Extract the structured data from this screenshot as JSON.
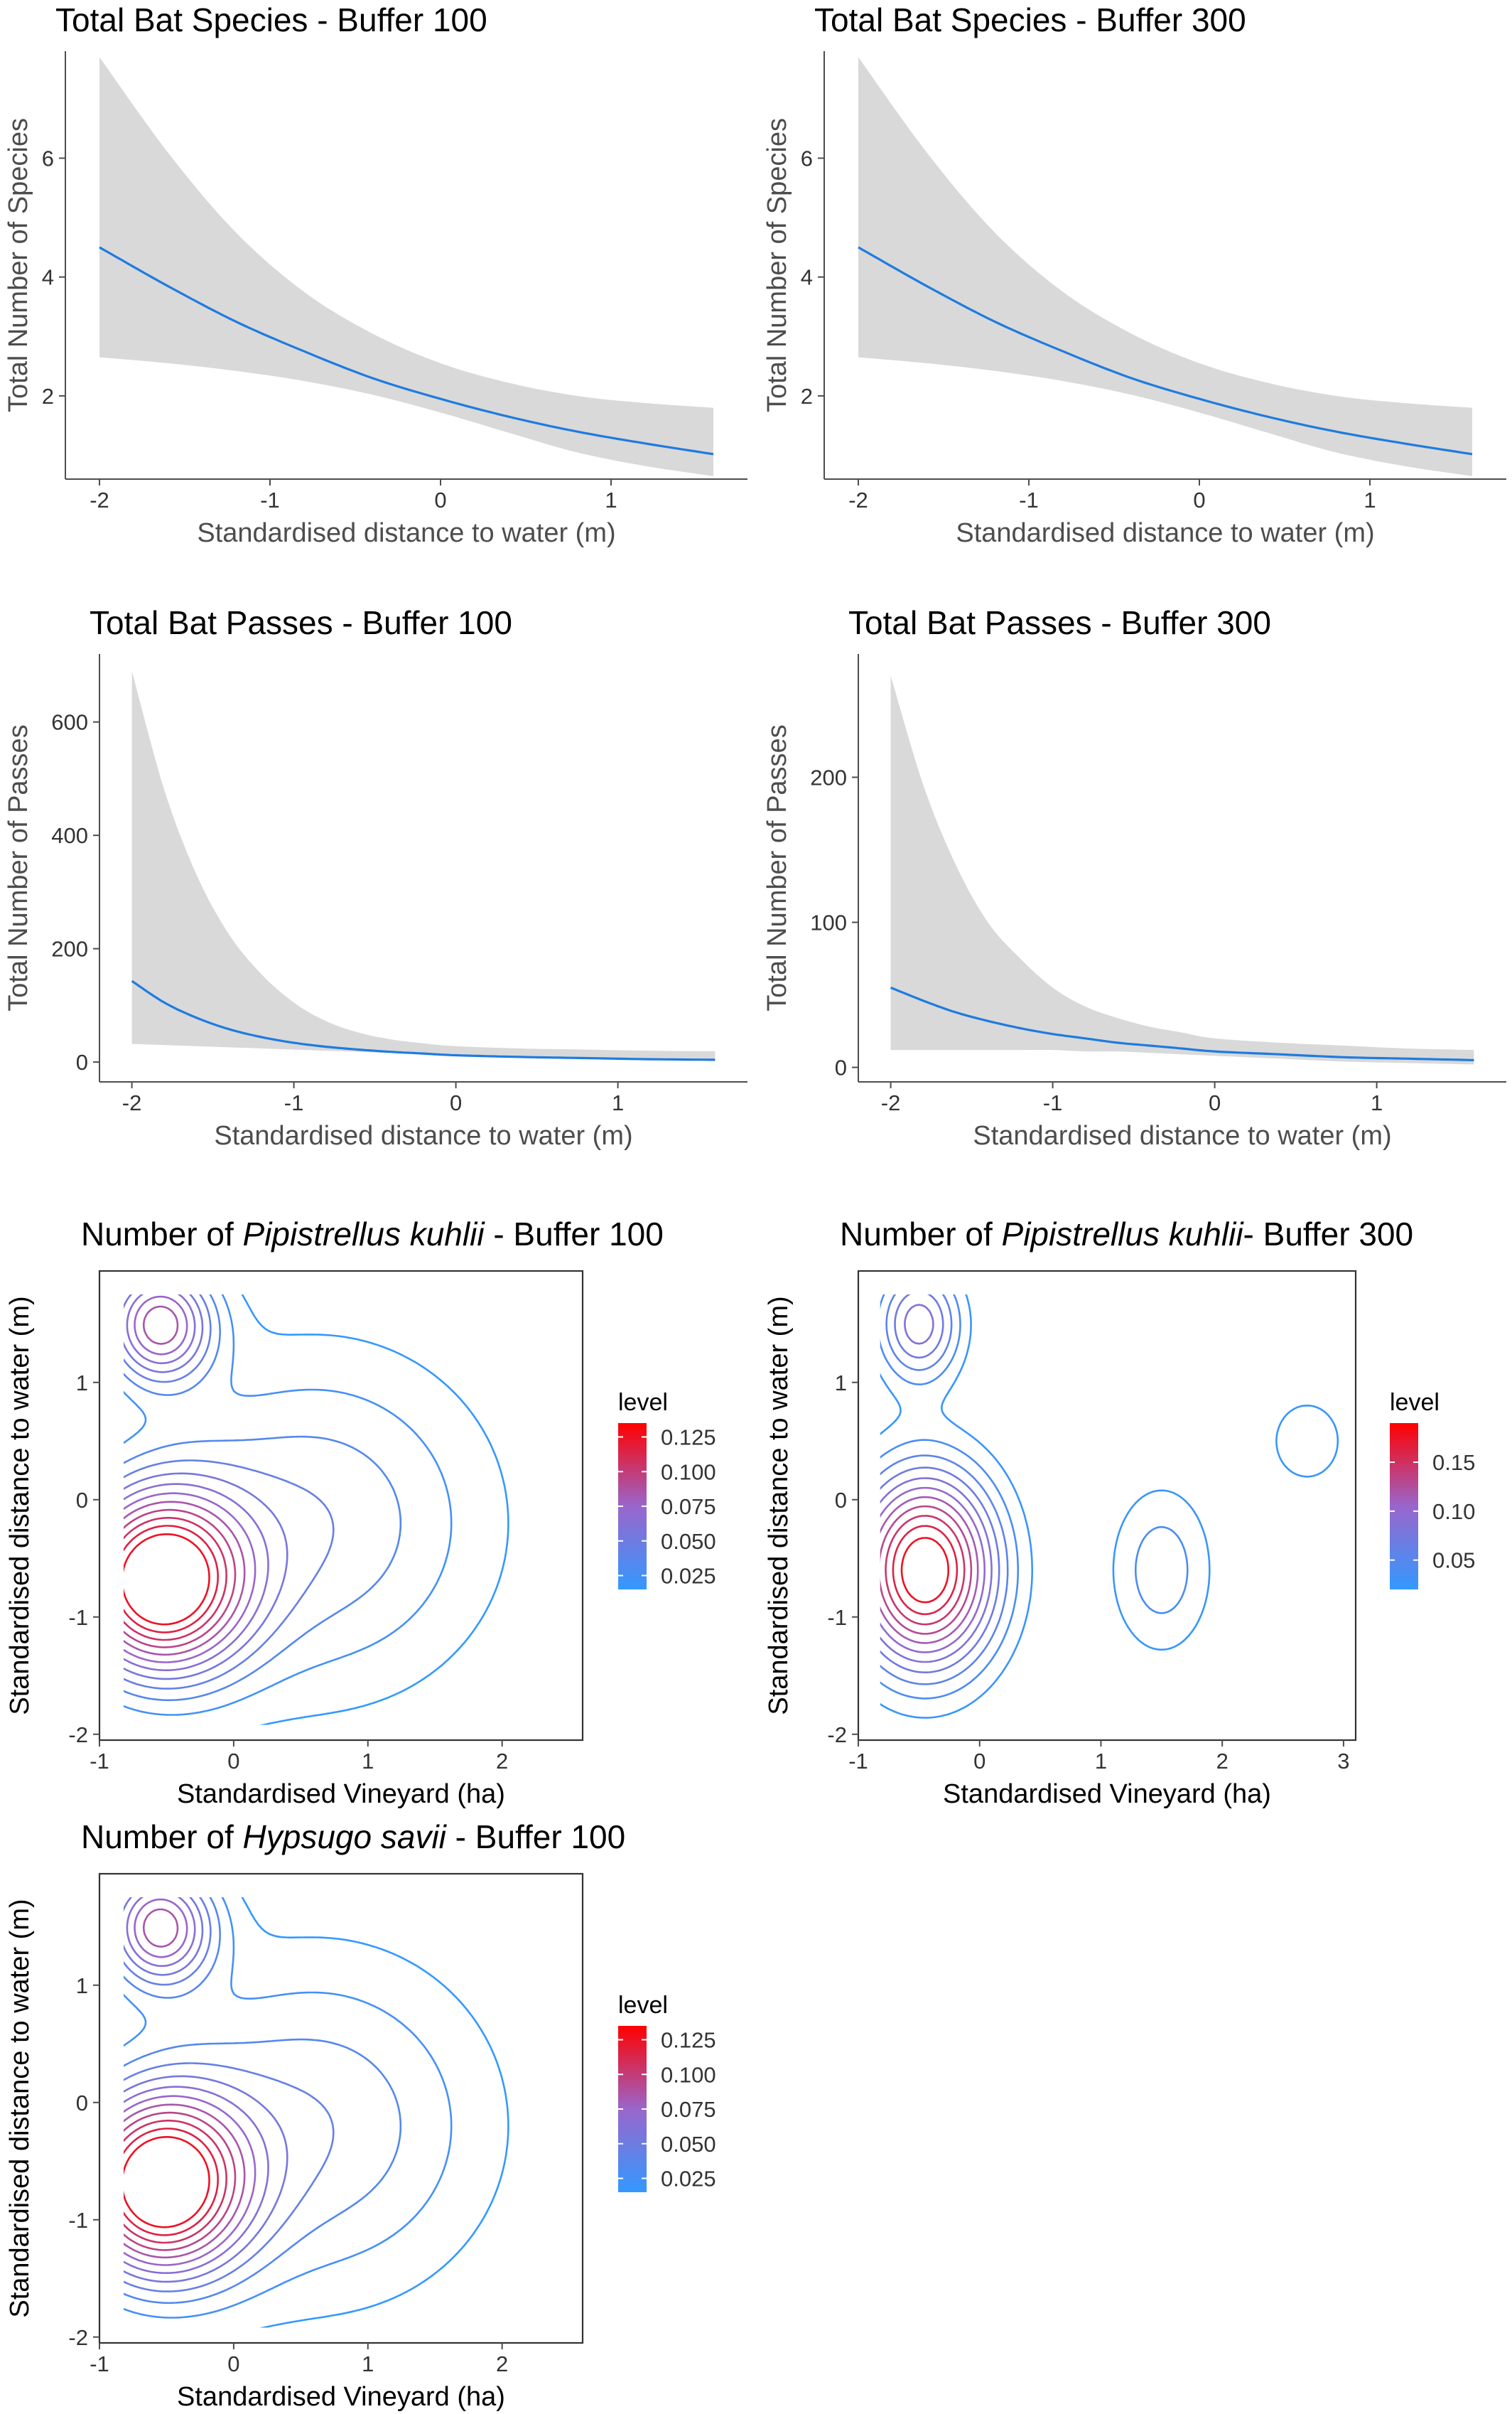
{
  "chart_data": [
    {
      "type": "line",
      "title": "Total Bat Species - Buffer 100",
      "xlabel": "Standardised distance to water (m)",
      "ylabel": "Total Number of Species",
      "xlim": [
        -2.2,
        1.8
      ],
      "ylim": [
        0.6,
        7.8
      ],
      "xticks": [
        -2,
        -1,
        0,
        1
      ],
      "xtick_labels": [
        "-2",
        "-1",
        "0",
        "1"
      ],
      "yticks": [
        2,
        4,
        6
      ],
      "ytick_labels": [
        "2",
        "4",
        "6"
      ],
      "series": [
        {
          "x": [
            -2.0,
            -1.6,
            -1.2,
            -0.8,
            -0.4,
            0.0,
            0.4,
            0.8,
            1.2,
            1.6
          ],
          "y": [
            4.5,
            3.85,
            3.25,
            2.75,
            2.3,
            1.95,
            1.65,
            1.4,
            1.2,
            1.02
          ],
          "lower": [
            2.65,
            2.55,
            2.42,
            2.25,
            2.02,
            1.72,
            1.38,
            1.05,
            0.82,
            0.65
          ],
          "upper": [
            7.7,
            6.1,
            4.75,
            3.75,
            3.05,
            2.55,
            2.22,
            2.0,
            1.88,
            1.8
          ],
          "color": "#1e7be0",
          "band_color": "#d9d9d9"
        }
      ]
    },
    {
      "type": "line",
      "title": "Total Bat Species - Buffer 300",
      "xlabel": "Standardised distance to water (m)",
      "ylabel": "Total Number of Species",
      "xlim": [
        -2.2,
        1.8
      ],
      "ylim": [
        0.6,
        7.8
      ],
      "xticks": [
        -2,
        -1,
        0,
        1
      ],
      "xtick_labels": [
        "-2",
        "-1",
        "0",
        "1"
      ],
      "yticks": [
        2,
        4,
        6
      ],
      "ytick_labels": [
        "2",
        "4",
        "6"
      ],
      "series": [
        {
          "x": [
            -2.0,
            -1.6,
            -1.2,
            -0.8,
            -0.4,
            0.0,
            0.4,
            0.8,
            1.2,
            1.6
          ],
          "y": [
            4.5,
            3.85,
            3.25,
            2.75,
            2.3,
            1.95,
            1.65,
            1.4,
            1.2,
            1.02
          ],
          "lower": [
            2.65,
            2.55,
            2.42,
            2.25,
            2.02,
            1.72,
            1.38,
            1.05,
            0.82,
            0.65
          ],
          "upper": [
            7.7,
            6.1,
            4.75,
            3.75,
            3.05,
            2.55,
            2.22,
            2.0,
            1.88,
            1.8
          ],
          "color": "#1e7be0",
          "band_color": "#d9d9d9"
        }
      ]
    },
    {
      "type": "line",
      "title": "Total Bat Passes - Buffer 100",
      "xlabel": "Standardised distance to water (m)",
      "ylabel": "Total Number of Passes",
      "xlim": [
        -2.2,
        1.8
      ],
      "ylim": [
        -35,
        720
      ],
      "xticks": [
        -2,
        -1,
        0,
        1
      ],
      "xtick_labels": [
        "-2",
        "-1",
        "0",
        "1"
      ],
      "yticks": [
        0,
        200,
        400,
        600
      ],
      "ytick_labels": [
        "0",
        "200",
        "400",
        "600"
      ],
      "series": [
        {
          "x": [
            -2.0,
            -1.8,
            -1.6,
            -1.4,
            -1.2,
            -1.0,
            -0.8,
            -0.6,
            -0.4,
            -0.2,
            0.0,
            0.4,
            0.8,
            1.2,
            1.6
          ],
          "y": [
            143,
            105,
            78,
            58,
            44,
            34,
            27,
            22,
            18,
            15,
            12,
            9,
            7,
            5,
            4
          ],
          "lower": [
            32,
            30,
            28,
            26,
            24,
            22,
            20,
            18,
            16,
            14,
            11,
            8,
            5,
            3,
            2
          ],
          "upper": [
            690,
            480,
            330,
            225,
            155,
            105,
            72,
            52,
            40,
            33,
            28,
            24,
            22,
            20,
            19
          ],
          "color": "#1e7be0",
          "band_color": "#d9d9d9"
        }
      ]
    },
    {
      "type": "line",
      "title": "Total Bat Passes - Buffer 300",
      "xlabel": "Standardised distance to water (m)",
      "ylabel": "Total Number of Passes",
      "xlim": [
        -2.2,
        1.8
      ],
      "ylim": [
        -10,
        285
      ],
      "xticks": [
        -2,
        -1,
        0,
        1
      ],
      "xtick_labels": [
        "-2",
        "-1",
        "0",
        "1"
      ],
      "yticks": [
        0,
        100,
        200
      ],
      "ytick_labels": [
        "0",
        "100",
        "200"
      ],
      "series": [
        {
          "x": [
            -2.0,
            -1.8,
            -1.6,
            -1.4,
            -1.2,
            -1.0,
            -0.8,
            -0.6,
            -0.4,
            -0.2,
            0.0,
            0.4,
            0.8,
            1.2,
            1.6
          ],
          "y": [
            55,
            46,
            38,
            32,
            27,
            23,
            20,
            17,
            15,
            13,
            11,
            9,
            7,
            6,
            5
          ],
          "lower": [
            12,
            12,
            12,
            12,
            12,
            12,
            11,
            11,
            10,
            9,
            8,
            6,
            4,
            3,
            2
          ],
          "upper": [
            270,
            195,
            140,
            100,
            75,
            55,
            42,
            34,
            28,
            24,
            20,
            17,
            15,
            13,
            12
          ],
          "color": "#1e7be0",
          "band_color": "#d9d9d9"
        }
      ]
    },
    {
      "type": "contour",
      "title_prefix": "Number of ",
      "title_species": "Pipistrellus kuhlii",
      "title_suffix": " - Buffer 100",
      "xlabel": "Standardised Vineyard (ha)",
      "ylabel": "Standardised distance to water (m)",
      "xlim": [
        -1.0,
        2.6
      ],
      "ylim": [
        -2.05,
        1.95
      ],
      "xticks": [
        -1,
        0,
        1,
        2
      ],
      "xtick_labels": [
        "-1",
        "0",
        "1",
        "2"
      ],
      "yticks": [
        -2,
        -1,
        0,
        1
      ],
      "ytick_labels": [
        "-2",
        "-1",
        "0",
        "1"
      ],
      "legend_title": "level",
      "legend_labels": [
        "0.125",
        "0.100",
        "0.075",
        "0.050",
        "0.025"
      ],
      "legend_values": [
        0.125,
        0.1,
        0.075,
        0.05,
        0.025
      ],
      "level_range": [
        0.015,
        0.135
      ],
      "color_low": "#3399ff",
      "color_mid": "#9966cc",
      "color_high": "#ff0000",
      "levels": [
        0.015,
        0.025,
        0.035,
        0.045,
        0.055,
        0.065,
        0.075,
        0.085,
        0.095,
        0.105,
        0.115,
        0.125
      ],
      "field": {
        "bumps": [
          {
            "x": -0.55,
            "y": -0.7,
            "amp": 0.135,
            "sx": 0.45,
            "sy": 0.55
          },
          {
            "x": -0.55,
            "y": 1.5,
            "amp": 0.085,
            "sx": 0.28,
            "sy": 0.35
          },
          {
            "x": 0.6,
            "y": -0.2,
            "amp": 0.04,
            "sx": 0.9,
            "sy": 1.0
          }
        ],
        "base": 0.004
      }
    },
    {
      "type": "contour",
      "title_prefix": "Number of ",
      "title_species": "Pipistrellus kuhlii",
      "title_suffix": "- Buffer 300",
      "xlabel": "Standardised Vineyard (ha)",
      "ylabel": "Standardised distance to water (m)",
      "xlim": [
        -1.0,
        3.1
      ],
      "ylim": [
        -2.05,
        1.95
      ],
      "xticks": [
        -1,
        0,
        1,
        2,
        3
      ],
      "xtick_labels": [
        "-1",
        "0",
        "1",
        "2",
        "3"
      ],
      "yticks": [
        -2,
        -1,
        0,
        1
      ],
      "ytick_labels": [
        "-2",
        "-1",
        "0",
        "1"
      ],
      "legend_title": "level",
      "legend_labels": [
        "0.15",
        "0.10",
        "0.05"
      ],
      "legend_values": [
        0.15,
        0.1,
        0.05
      ],
      "level_range": [
        0.02,
        0.19
      ],
      "color_low": "#3399ff",
      "color_mid": "#9966cc",
      "color_high": "#ff0000",
      "levels": [
        0.025,
        0.04,
        0.055,
        0.07,
        0.085,
        0.1,
        0.115,
        0.13,
        0.145,
        0.16,
        0.175
      ],
      "field": {
        "bumps": [
          {
            "x": -0.45,
            "y": -0.6,
            "amp": 0.19,
            "sx": 0.42,
            "sy": 0.6
          },
          {
            "x": -0.5,
            "y": 1.5,
            "amp": 0.09,
            "sx": 0.25,
            "sy": 0.35
          },
          {
            "x": 1.5,
            "y": -0.6,
            "amp": 0.045,
            "sx": 0.32,
            "sy": 0.55
          },
          {
            "x": 2.7,
            "y": 0.5,
            "amp": 0.035,
            "sx": 0.25,
            "sy": 0.3
          }
        ],
        "base": 0.004
      }
    },
    {
      "type": "contour",
      "title_prefix": "Number of ",
      "title_species": "Hypsugo savii",
      "title_suffix": " - Buffer 100",
      "xlabel": "Standardised Vineyard (ha)",
      "ylabel": "Standardised distance to water (m)",
      "xlim": [
        -1.0,
        2.6
      ],
      "ylim": [
        -2.05,
        1.95
      ],
      "xticks": [
        -1,
        0,
        1,
        2
      ],
      "xtick_labels": [
        "-1",
        "0",
        "1",
        "2"
      ],
      "yticks": [
        -2,
        -1,
        0,
        1
      ],
      "ytick_labels": [
        "-2",
        "-1",
        "0",
        "1"
      ],
      "legend_title": "level",
      "legend_labels": [
        "0.125",
        "0.100",
        "0.075",
        "0.050",
        "0.025"
      ],
      "legend_values": [
        0.125,
        0.1,
        0.075,
        0.05,
        0.025
      ],
      "level_range": [
        0.015,
        0.135
      ],
      "color_low": "#3399ff",
      "color_mid": "#9966cc",
      "color_high": "#ff0000",
      "levels": [
        0.015,
        0.025,
        0.035,
        0.045,
        0.055,
        0.065,
        0.075,
        0.085,
        0.095,
        0.105,
        0.115,
        0.125
      ],
      "field": {
        "bumps": [
          {
            "x": -0.55,
            "y": -0.7,
            "amp": 0.135,
            "sx": 0.45,
            "sy": 0.55
          },
          {
            "x": -0.55,
            "y": 1.5,
            "amp": 0.085,
            "sx": 0.28,
            "sy": 0.35
          },
          {
            "x": 0.6,
            "y": -0.2,
            "amp": 0.04,
            "sx": 0.9,
            "sy": 1.0
          }
        ],
        "base": 0.004
      }
    }
  ]
}
